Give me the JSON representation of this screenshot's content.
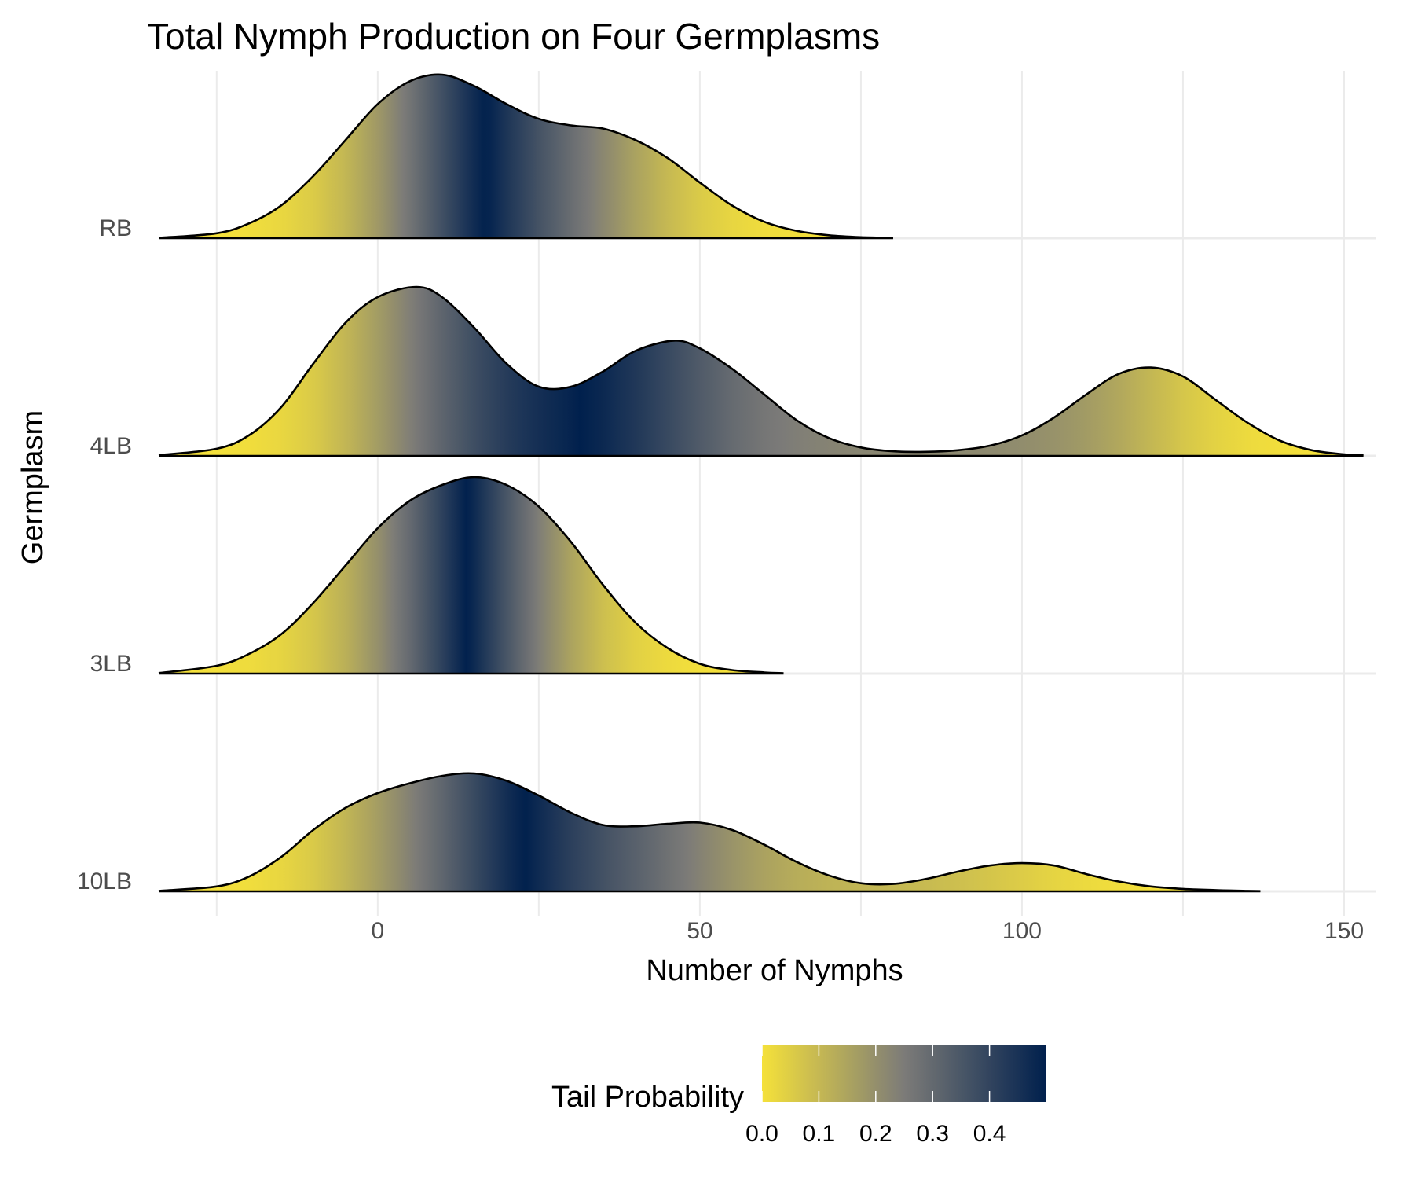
{
  "chart_data": {
    "type": "ridgeline",
    "title": "Total Nymph Production on Four Germplasms",
    "xlabel": "Number of Nymphs",
    "ylabel": "Germplasm",
    "xlim": [
      -34,
      155
    ],
    "x_ticks": [
      0,
      50,
      100,
      150
    ],
    "x_minor_ticks": [
      -25,
      25,
      75,
      125
    ],
    "grid": true,
    "categories": [
      "10LB",
      "3LB",
      "4LB",
      "RB"
    ],
    "series": [
      {
        "name": "RB",
        "x": [
          -34,
          -25,
          -20,
          -15,
          -10,
          -5,
          0,
          5,
          10,
          15,
          20,
          25,
          30,
          35,
          40,
          45,
          50,
          55,
          60,
          65,
          70,
          75,
          80
        ],
        "density": [
          0.002,
          0.03,
          0.09,
          0.2,
          0.38,
          0.6,
          0.82,
          0.96,
          1.0,
          0.93,
          0.82,
          0.73,
          0.69,
          0.67,
          0.6,
          0.49,
          0.34,
          0.2,
          0.1,
          0.045,
          0.018,
          0.006,
          0.002
        ]
      },
      {
        "name": "4LB",
        "x": [
          -34,
          -25,
          -20,
          -15,
          -10,
          -5,
          0,
          6,
          10,
          15,
          20,
          25,
          30,
          35,
          40,
          46,
          50,
          55,
          60,
          65,
          70,
          75,
          80,
          85,
          90,
          95,
          100,
          105,
          110,
          115,
          120,
          125,
          130,
          135,
          140,
          145,
          150,
          153
        ],
        "density": [
          0.003,
          0.028,
          0.08,
          0.19,
          0.36,
          0.52,
          0.62,
          0.66,
          0.62,
          0.5,
          0.36,
          0.27,
          0.27,
          0.33,
          0.41,
          0.45,
          0.42,
          0.34,
          0.24,
          0.14,
          0.07,
          0.033,
          0.018,
          0.016,
          0.022,
          0.04,
          0.08,
          0.15,
          0.24,
          0.32,
          0.345,
          0.31,
          0.22,
          0.13,
          0.06,
          0.022,
          0.006,
          0.002
        ]
      },
      {
        "name": "3LB",
        "x": [
          -34,
          -25,
          -20,
          -15,
          -10,
          -5,
          0,
          5,
          10,
          15,
          20,
          25,
          30,
          35,
          40,
          45,
          50,
          55,
          60,
          63
        ],
        "density": [
          0.003,
          0.04,
          0.1,
          0.2,
          0.36,
          0.55,
          0.74,
          0.88,
          0.96,
          1.0,
          0.96,
          0.85,
          0.67,
          0.45,
          0.26,
          0.13,
          0.05,
          0.018,
          0.006,
          0.002
        ]
      },
      {
        "name": "10LB",
        "x": [
          -34,
          -25,
          -20,
          -15,
          -10,
          -5,
          0,
          5,
          10,
          15,
          20,
          25,
          30,
          35,
          40,
          45,
          50,
          55,
          60,
          65,
          70,
          75,
          80,
          85,
          90,
          95,
          100,
          105,
          110,
          115,
          120,
          125,
          130,
          135,
          137
        ],
        "density": [
          0.002,
          0.02,
          0.06,
          0.14,
          0.25,
          0.34,
          0.4,
          0.44,
          0.47,
          0.48,
          0.45,
          0.39,
          0.32,
          0.27,
          0.265,
          0.275,
          0.28,
          0.25,
          0.19,
          0.12,
          0.065,
          0.033,
          0.03,
          0.05,
          0.08,
          0.105,
          0.115,
          0.105,
          0.07,
          0.04,
          0.02,
          0.01,
          0.005,
          0.002,
          0.001
        ]
      }
    ],
    "fill_scale": {
      "name": "Tail Probability",
      "low_color": "#F5E13A",
      "mid_color": "#7C7B78",
      "high_color": "#00204D",
      "ticks": [
        "0.0",
        "0.1",
        "0.2",
        "0.3",
        "0.4"
      ],
      "max": 0.5
    }
  }
}
